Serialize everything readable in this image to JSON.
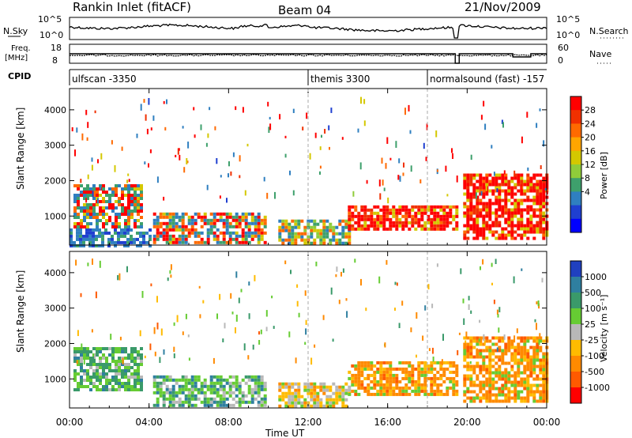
{
  "header": {
    "title": "Rankin Inlet (fitACF)",
    "beam": "Beam 04",
    "date": "21/Nov/2009"
  },
  "strips": {
    "nsky_label": "N.Sky",
    "nsearch_label": "N.Search",
    "freq_label_1": "Freq.",
    "freq_label_2": "[MHz]",
    "nave_label": "Nave",
    "cpid_label": "CPID",
    "nsky_ticks": [
      "10^5",
      "10^0"
    ],
    "nsearch_ticks": [
      "10^5",
      "10^0"
    ],
    "freq_ticks": [
      "18",
      "8"
    ],
    "nave_ticks": [
      "60",
      "0"
    ]
  },
  "cpid": [
    {
      "start_hour": 0,
      "label": "ulfscan -3350"
    },
    {
      "start_hour": 12,
      "label": "themis 3300"
    },
    {
      "start_hour": 18,
      "label": "normalsound (fast) -157"
    }
  ],
  "power_colorbar": {
    "label": "Power [dB]",
    "ticks": [
      "28",
      "24",
      "20",
      "16",
      "12",
      "8",
      "4"
    ],
    "colors": [
      "#ff0000",
      "#f03000",
      "#ff6a00",
      "#ffa500",
      "#d4c800",
      "#8fcc3a",
      "#3ea06c",
      "#2f7fc0",
      "#1f3fd0",
      "#0000ff"
    ]
  },
  "velocity_colorbar": {
    "label": "Velocity [m s⁻¹]",
    "ticks": [
      "1000",
      "500",
      "100",
      "25",
      "-25",
      "-100",
      "-500",
      "-1000"
    ],
    "colors": [
      "#2040c0",
      "#2f7fa0",
      "#3a9a6a",
      "#66cc33",
      "#b8b8b8",
      "#ffbb00",
      "#ff8a00",
      "#ff5a00",
      "#ff0000"
    ]
  },
  "chart_data": [
    {
      "type": "heatmap",
      "name": "power",
      "xlabel": "Time UT",
      "ylabel": "Slant Range [km]",
      "xlim": [
        0,
        24
      ],
      "ylim": [
        180,
        4600
      ],
      "xticks": [
        "00:00",
        "04:00",
        "08:00",
        "12:00",
        "16:00",
        "20:00",
        "00:00"
      ],
      "yticks": [
        1000,
        2000,
        3000,
        4000
      ],
      "regions": [
        {
          "t0": 0.2,
          "t1": 3.6,
          "r0": 700,
          "r1": 1900,
          "value": "mixed-high"
        },
        {
          "t0": 0.0,
          "t1": 4.0,
          "r0": 200,
          "r1": 650,
          "value": "low"
        },
        {
          "t0": 4.2,
          "t1": 9.8,
          "r0": 250,
          "r1": 1100,
          "value": "mixed-high"
        },
        {
          "t0": 10.5,
          "t1": 14.0,
          "r0": 200,
          "r1": 900,
          "value": "mixed"
        },
        {
          "t0": 14.0,
          "t1": 19.5,
          "r0": 600,
          "r1": 1300,
          "value": "high"
        },
        {
          "t0": 19.8,
          "t1": 24.0,
          "r0": 400,
          "r1": 2200,
          "value": "high"
        }
      ]
    },
    {
      "type": "heatmap",
      "name": "velocity",
      "xlabel": "Time UT",
      "ylabel": "Slant Range [km]",
      "xlim": [
        0,
        24
      ],
      "ylim": [
        180,
        4600
      ],
      "xticks": [
        "00:00",
        "04:00",
        "08:00",
        "12:00",
        "16:00",
        "20:00",
        "00:00"
      ],
      "yticks": [
        1000,
        2000,
        3000,
        4000
      ],
      "regions": [
        {
          "t0": 0.2,
          "t1": 3.6,
          "r0": 700,
          "r1": 1900,
          "value": "positive-low"
        },
        {
          "t0": 4.2,
          "t1": 9.8,
          "r0": 250,
          "r1": 1100,
          "value": "mixed"
        },
        {
          "t0": 10.5,
          "t1": 14.0,
          "r0": 200,
          "r1": 900,
          "value": "mixed-negative"
        },
        {
          "t0": 14.0,
          "t1": 19.5,
          "r0": 600,
          "r1": 1500,
          "value": "negative"
        },
        {
          "t0": 19.8,
          "t1": 24.0,
          "r0": 400,
          "r1": 2200,
          "value": "negative"
        }
      ]
    }
  ]
}
